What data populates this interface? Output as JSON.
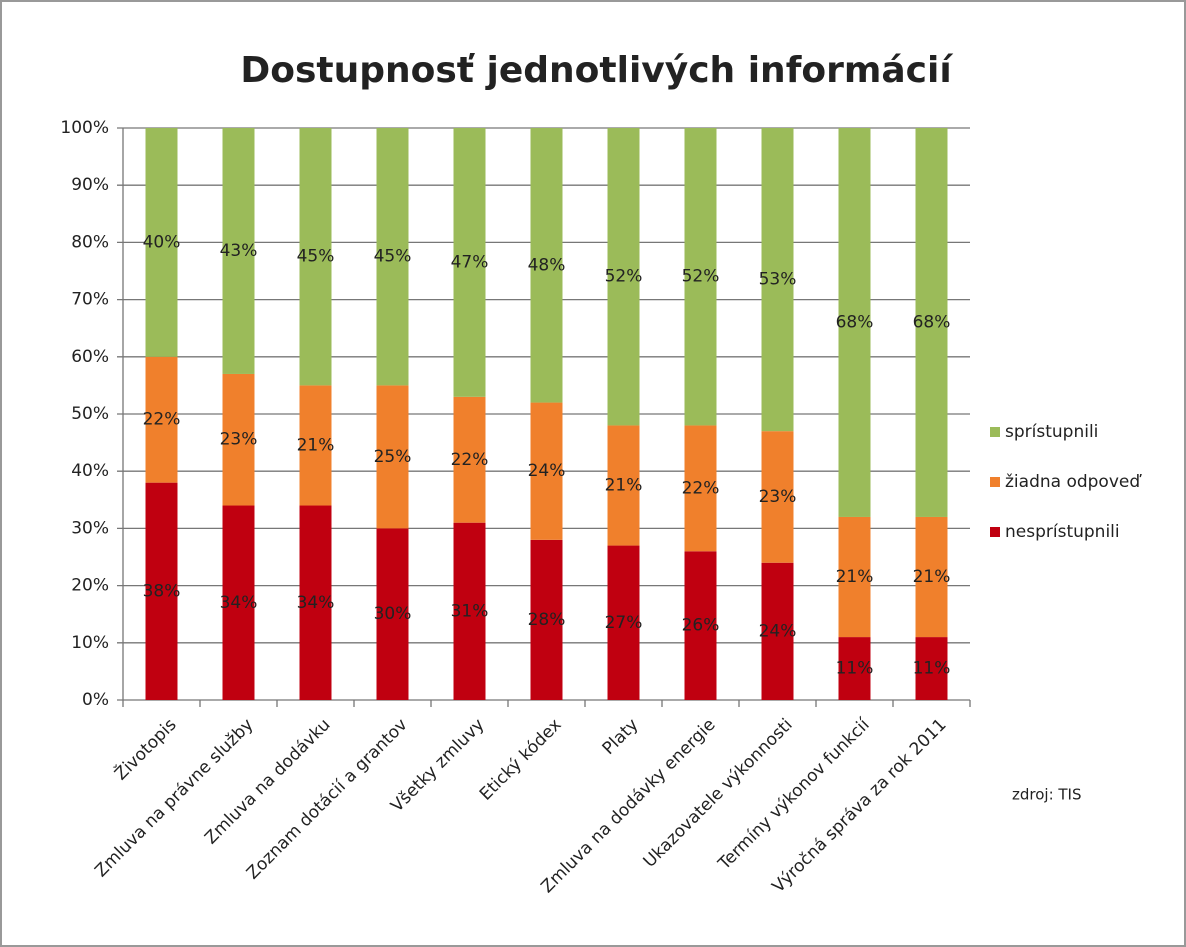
{
  "chart_data": {
    "type": "stacked_bar",
    "title": "Dostupnosť jednotlivých informácií",
    "categories": [
      "Životopis",
      "Zmluva na právne služby",
      "Zmluva na dodávku",
      "Zoznam dotácií a grantov",
      "Všetky zmluvy",
      "Etický kódex",
      "Platy",
      "Zmluva na dodávky energie",
      "Ukazovatele výkonnosti",
      "Termíny výkonov funkcií",
      "Výročná správa za rok 2011"
    ],
    "series": [
      {
        "name": "nesprístupnili",
        "color": "#c00010",
        "values": [
          38,
          34,
          34,
          30,
          31,
          28,
          27,
          26,
          24,
          11,
          11
        ],
        "value_labels": [
          "38%",
          "34%",
          "34%",
          "30%",
          "31%",
          "28%",
          "27%",
          "26%",
          "24%",
          "11%",
          "11%"
        ]
      },
      {
        "name": "žiadna odpoveď",
        "color": "#f0802c",
        "values": [
          22,
          23,
          21,
          25,
          22,
          24,
          21,
          22,
          23,
          21,
          21
        ],
        "value_labels": [
          "22%",
          "23%",
          "21%",
          "25%",
          "22%",
          "24%",
          "21%",
          "22%",
          "23%",
          "21%",
          "21%"
        ]
      },
      {
        "name": "sprístupnili",
        "color": "#9bbb59",
        "values": [
          40,
          43,
          45,
          45,
          47,
          48,
          52,
          52,
          53,
          68,
          68
        ],
        "value_labels": [
          "40%",
          "43%",
          "45%",
          "45%",
          "47%",
          "48%",
          "52%",
          "52%",
          "53%",
          "68%",
          "68%"
        ]
      }
    ],
    "ylim": [
      0,
      100
    ],
    "yticks": [
      {
        "value": 0,
        "label": "0%"
      },
      {
        "value": 10,
        "label": "10%"
      },
      {
        "value": 20,
        "label": "20%"
      },
      {
        "value": 30,
        "label": "30%"
      },
      {
        "value": 40,
        "label": "40%"
      },
      {
        "value": 50,
        "label": "50%"
      },
      {
        "value": 60,
        "label": "60%"
      },
      {
        "value": 70,
        "label": "70%"
      },
      {
        "value": 80,
        "label": "80%"
      },
      {
        "value": 90,
        "label": "90%"
      },
      {
        "value": 100,
        "label": "100%"
      }
    ],
    "grid": true,
    "legend": "right",
    "source": "zdroj: TIS"
  }
}
